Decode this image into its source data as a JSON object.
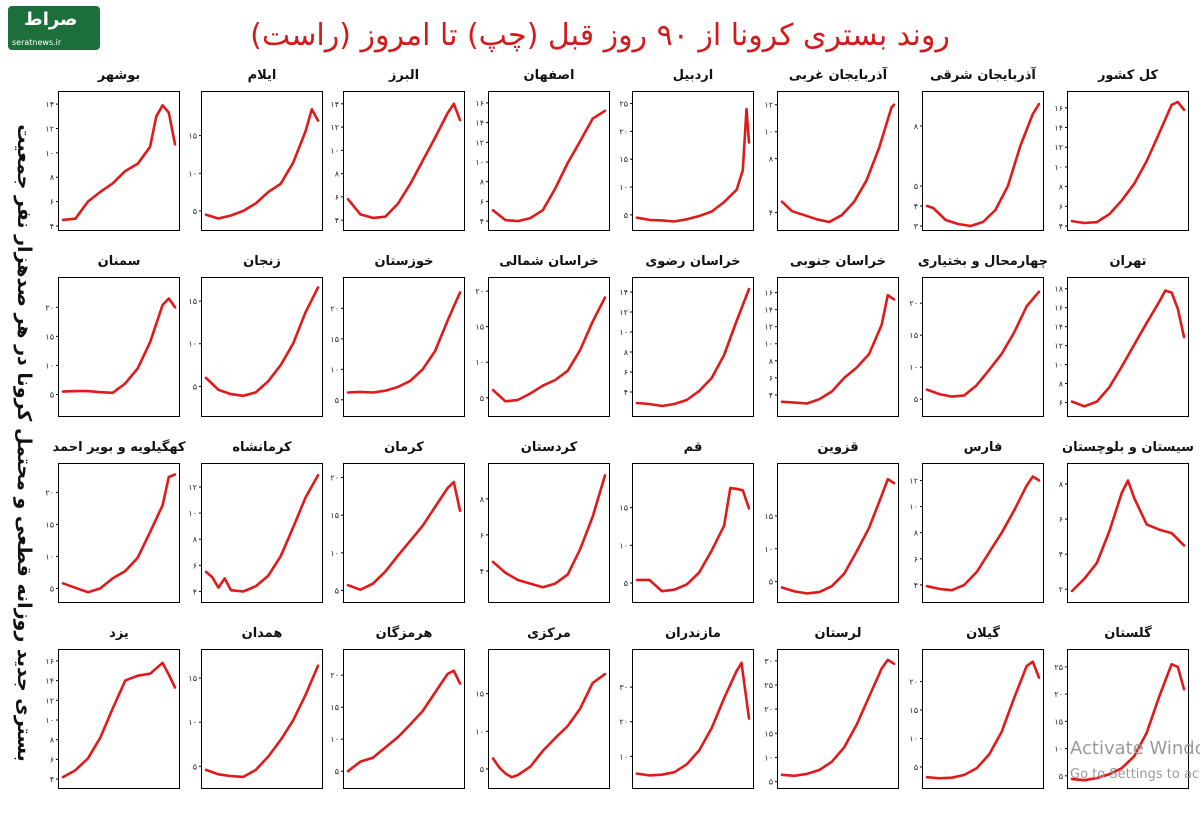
{
  "header": {
    "title": "روند بستری کرونا از ۹۰ روز قبل (چپ) تا امروز (راست)",
    "side_label": "بستری جدید روزانه قطعی و محتمل کرونا در هر صدهزار نفر جمعیت",
    "logo_mark": "صراط",
    "logo_url": "seratnews.ir",
    "watermark_line1": "Activate Windows",
    "watermark_line2": "Go to Settings to activate"
  },
  "colors": {
    "line": "#e01a1a",
    "title": "#d21a1a",
    "axis": "#000000"
  },
  "chart_data": [
    {
      "type": "line",
      "title": "کل کشور",
      "ylim": [
        4,
        17
      ],
      "yticks": [
        "۴",
        "۶",
        "۸",
        "۱۰",
        "۱۲",
        "۱۴",
        "۱۶"
      ],
      "x": [
        0,
        10,
        20,
        30,
        40,
        50,
        60,
        70,
        80,
        85,
        90
      ],
      "values": [
        4.5,
        4.3,
        4.4,
        5.2,
        6.6,
        8.3,
        10.6,
        13.4,
        16.3,
        16.6,
        15.8
      ]
    },
    {
      "type": "line",
      "title": "آذربایجان شرقی",
      "ylim": [
        3,
        9.4
      ],
      "yticks": [
        "۳",
        "۴",
        "۵",
        "۸"
      ],
      "x": [
        0,
        5,
        15,
        25,
        35,
        45,
        55,
        65,
        75,
        85,
        90
      ],
      "values": [
        4.0,
        3.9,
        3.3,
        3.1,
        3.0,
        3.2,
        3.8,
        5.0,
        7.0,
        8.6,
        9.1
      ]
    },
    {
      "type": "line",
      "title": "آذربایجان غربی",
      "ylim": [
        3,
        12.5
      ],
      "yticks": [
        "۴",
        "۸",
        "۱۰",
        "۱۲"
      ],
      "x": [
        0,
        8,
        18,
        28,
        38,
        48,
        58,
        68,
        78,
        88,
        90
      ],
      "values": [
        4.8,
        4.1,
        3.8,
        3.5,
        3.3,
        3.8,
        4.8,
        6.4,
        8.8,
        11.8,
        12.0
      ]
    },
    {
      "type": "line",
      "title": "اردبیل",
      "ylim": [
        3,
        26
      ],
      "yticks": [
        "۵",
        "۱۰",
        "۱۵",
        "۲۰",
        "۲۵"
      ],
      "x": [
        0,
        10,
        20,
        30,
        40,
        50,
        60,
        70,
        80,
        85,
        88,
        90
      ],
      "values": [
        4.5,
        4.1,
        4.0,
        3.8,
        4.2,
        4.8,
        5.6,
        7.3,
        9.5,
        13.0,
        24.0,
        18.0
      ]
    },
    {
      "type": "line",
      "title": "اصفهان",
      "ylim": [
        3.5,
        16.5
      ],
      "yticks": [
        "۴",
        "۶",
        "۸",
        "۱۰",
        "۱۲",
        "۱۴",
        "۱۶"
      ],
      "x": [
        0,
        10,
        20,
        30,
        40,
        50,
        60,
        70,
        80,
        90
      ],
      "values": [
        5.1,
        4.1,
        4.0,
        4.3,
        5.1,
        7.3,
        9.9,
        12.1,
        14.4,
        15.2
      ]
    },
    {
      "type": "line",
      "title": "البرز",
      "ylim": [
        3.5,
        14.5
      ],
      "yticks": [
        "۴",
        "۶",
        "۸",
        "۱۰",
        "۱۲",
        "۱۴"
      ],
      "x": [
        0,
        10,
        20,
        30,
        40,
        50,
        60,
        70,
        80,
        85,
        90
      ],
      "values": [
        5.8,
        4.5,
        4.2,
        4.3,
        5.4,
        7.1,
        9.1,
        11.1,
        13.2,
        14.0,
        12.6
      ]
    },
    {
      "type": "line",
      "title": "ایلام",
      "ylim": [
        3,
        20
      ],
      "yticks": [
        "۵",
        "۱۰",
        "۱۵"
      ],
      "x": [
        0,
        10,
        20,
        30,
        40,
        50,
        60,
        70,
        80,
        85,
        90
      ],
      "values": [
        4.5,
        4.0,
        4.4,
        5.0,
        6.0,
        7.5,
        8.6,
        11.4,
        15.6,
        18.5,
        17.0
      ]
    },
    {
      "type": "line",
      "title": "بوشهر",
      "ylim": [
        4,
        14.5
      ],
      "yticks": [
        "۴",
        "۶",
        "۸",
        "۱۰",
        "۱۲",
        "۱۴"
      ],
      "x": [
        0,
        10,
        20,
        30,
        40,
        50,
        60,
        70,
        75,
        80,
        85,
        90
      ],
      "values": [
        4.5,
        4.6,
        6.0,
        6.8,
        7.5,
        8.5,
        9.1,
        10.5,
        13.0,
        13.9,
        13.3,
        10.7
      ]
    },
    {
      "type": "line",
      "title": "تهران",
      "ylim": [
        5,
        18.5
      ],
      "yticks": [
        "۶",
        "۸",
        "۱۰",
        "۱۲",
        "۱۴",
        "۱۶",
        "۱۸"
      ],
      "x": [
        0,
        10,
        20,
        30,
        40,
        50,
        60,
        70,
        75,
        80,
        85,
        90
      ],
      "values": [
        6.1,
        5.6,
        6.1,
        7.6,
        9.8,
        12.1,
        14.4,
        16.6,
        17.8,
        17.6,
        15.9,
        12.9
      ]
    },
    {
      "type": "line",
      "title": "چهارمحال و بختیاری",
      "ylim": [
        3,
        23
      ],
      "yticks": [
        "۵",
        "۱۰",
        "۱۵",
        "۲۰"
      ],
      "x": [
        0,
        10,
        20,
        30,
        40,
        50,
        60,
        70,
        80,
        90
      ],
      "values": [
        6.5,
        5.8,
        5.4,
        5.6,
        7.2,
        9.6,
        12.1,
        15.4,
        19.5,
        21.8
      ]
    },
    {
      "type": "line",
      "title": "خراسان جنوبی",
      "ylim": [
        2,
        17
      ],
      "yticks": [
        "۴",
        "۶",
        "۸",
        "۱۰",
        "۱۲",
        "۱۴",
        "۱۶"
      ],
      "x": [
        0,
        10,
        20,
        30,
        40,
        50,
        60,
        70,
        80,
        85,
        90
      ],
      "values": [
        3.2,
        3.1,
        3.0,
        3.5,
        4.4,
        6.0,
        7.2,
        8.8,
        12.2,
        15.7,
        15.2
      ]
    },
    {
      "type": "line",
      "title": "خراسان رضوی",
      "ylim": [
        2,
        14.8
      ],
      "yticks": [
        "۴",
        "۶",
        "۸",
        "۱۰",
        "۱۲",
        "۱۴"
      ],
      "x": [
        0,
        10,
        20,
        30,
        40,
        50,
        60,
        70,
        80,
        90
      ],
      "values": [
        2.9,
        2.8,
        2.6,
        2.8,
        3.2,
        4.1,
        5.4,
        7.7,
        11.1,
        14.3
      ]
    },
    {
      "type": "line",
      "title": "خراسان شمالی",
      "ylim": [
        3,
        21
      ],
      "yticks": [
        "۵",
        "۱۰",
        "۱۵",
        "۲۰"
      ],
      "x": [
        0,
        10,
        20,
        30,
        40,
        50,
        60,
        70,
        80,
        90
      ],
      "values": [
        6.1,
        4.5,
        4.7,
        5.6,
        6.7,
        7.5,
        8.8,
        11.7,
        15.7,
        19.1
      ]
    },
    {
      "type": "line",
      "title": "خوزستان",
      "ylim": [
        3,
        24
      ],
      "yticks": [
        "۵",
        "۱۰",
        "۱۵",
        "۲۰"
      ],
      "x": [
        0,
        10,
        20,
        30,
        40,
        50,
        60,
        70,
        80,
        90
      ],
      "values": [
        6.2,
        6.3,
        6.2,
        6.5,
        7.1,
        8.1,
        10.0,
        13.0,
        18.0,
        22.6
      ]
    },
    {
      "type": "line",
      "title": "زنجان",
      "ylim": [
        2,
        17
      ],
      "yticks": [
        "۵",
        "۱۰",
        "۱۵"
      ],
      "x": [
        0,
        10,
        20,
        30,
        40,
        50,
        60,
        70,
        80,
        90
      ],
      "values": [
        6.0,
        4.6,
        4.1,
        3.9,
        4.3,
        5.6,
        7.5,
        10.0,
        13.7,
        16.6
      ]
    },
    {
      "type": "line",
      "title": "سمنان",
      "ylim": [
        2,
        24
      ],
      "yticks": [
        "۵",
        "۱۰",
        "۱۵",
        "۲۰"
      ],
      "x": [
        0,
        10,
        20,
        30,
        40,
        50,
        60,
        70,
        80,
        85,
        90
      ],
      "values": [
        5.5,
        5.6,
        5.6,
        5.4,
        5.3,
        6.9,
        9.5,
        14.0,
        20.4,
        21.5,
        20.0
      ]
    },
    {
      "type": "line",
      "title": "سیستان و بلوچستان",
      "ylim": [
        1.5,
        8.8
      ],
      "yticks": [
        "۲",
        "۴",
        "۶",
        "۸"
      ],
      "x": [
        0,
        10,
        20,
        30,
        40,
        45,
        50,
        60,
        70,
        80,
        90
      ],
      "values": [
        1.9,
        2.6,
        3.5,
        5.3,
        7.5,
        8.2,
        7.2,
        5.7,
        5.4,
        5.2,
        4.5
      ]
    },
    {
      "type": "line",
      "title": "فارس",
      "ylim": [
        3,
        12.8
      ],
      "yticks": [
        "۴",
        "۶",
        "۸",
        "۱۰",
        "۱۲"
      ],
      "x": [
        0,
        10,
        20,
        30,
        40,
        50,
        60,
        70,
        80,
        85,
        90
      ],
      "values": [
        3.9,
        3.7,
        3.6,
        4.0,
        5.0,
        6.5,
        8.0,
        9.7,
        11.6,
        12.3,
        12.0
      ]
    },
    {
      "type": "line",
      "title": "قزوین",
      "ylim": [
        2.5,
        22
      ],
      "yticks": [
        "۵",
        "۱۰",
        "۱۵"
      ],
      "x": [
        0,
        10,
        20,
        30,
        40,
        50,
        60,
        70,
        80,
        85,
        90
      ],
      "values": [
        4.1,
        3.5,
        3.2,
        3.4,
        4.3,
        6.2,
        9.6,
        13.2,
        18.1,
        20.6,
        20.0
      ]
    },
    {
      "type": "line",
      "title": "قم",
      "ylim": [
        3,
        20
      ],
      "yticks": [
        "۵",
        "۱۰",
        "۱۵"
      ],
      "x": [
        0,
        10,
        20,
        30,
        40,
        50,
        60,
        70,
        75,
        80,
        85,
        90
      ],
      "values": [
        5.4,
        5.4,
        3.9,
        4.1,
        4.8,
        6.4,
        9.3,
        12.6,
        17.6,
        17.5,
        17.3,
        14.9
      ]
    },
    {
      "type": "line",
      "title": "کردستان",
      "ylim": [
        2.5,
        9.6
      ],
      "yticks": [
        "۴",
        "۶",
        "۸"
      ],
      "x": [
        0,
        10,
        20,
        30,
        40,
        50,
        60,
        70,
        80,
        90
      ],
      "values": [
        4.5,
        3.9,
        3.5,
        3.3,
        3.1,
        3.3,
        3.8,
        5.2,
        7.0,
        9.3
      ]
    },
    {
      "type": "line",
      "title": "کرمان",
      "ylim": [
        4,
        21
      ],
      "yticks": [
        "۵",
        "۱۰",
        "۱۵",
        "۲۰"
      ],
      "x": [
        0,
        10,
        20,
        30,
        40,
        50,
        60,
        70,
        80,
        85,
        90
      ],
      "values": [
        5.7,
        5.1,
        5.9,
        7.5,
        9.6,
        11.6,
        13.6,
        16.1,
        18.6,
        19.4,
        15.6
      ]
    },
    {
      "type": "line",
      "title": "کرمانشاه",
      "ylim": [
        3.5,
        13.3
      ],
      "yticks": [
        "۴",
        "۶",
        "۸",
        "۱۰",
        "۱۲"
      ],
      "x": [
        0,
        5,
        10,
        15,
        20,
        30,
        40,
        50,
        60,
        70,
        80,
        90
      ],
      "values": [
        5.5,
        5.1,
        4.3,
        5.0,
        4.1,
        4.0,
        4.4,
        5.2,
        6.7,
        8.9,
        11.2,
        12.9
      ]
    },
    {
      "type": "line",
      "title": "کهگیلویه و بویر احمد",
      "ylim": [
        3.5,
        23.5
      ],
      "yticks": [
        "۵",
        "۱۰",
        "۱۵",
        "۲۰"
      ],
      "x": [
        0,
        10,
        20,
        30,
        40,
        50,
        60,
        70,
        80,
        85,
        90
      ],
      "values": [
        5.8,
        5.1,
        4.4,
        5.0,
        6.6,
        7.7,
        9.8,
        13.8,
        18.0,
        22.4,
        22.8
      ]
    },
    {
      "type": "line",
      "title": "گلستان",
      "ylim": [
        3.5,
        27
      ],
      "yticks": [
        "۵",
        "۱۰",
        "۱۵",
        "۲۰",
        "۲۵"
      ],
      "x": [
        0,
        10,
        20,
        30,
        40,
        50,
        60,
        70,
        80,
        85,
        90
      ],
      "values": [
        4.4,
        4.2,
        4.6,
        5.3,
        6.4,
        8.6,
        12.9,
        19.5,
        25.5,
        25.0,
        20.9
      ]
    },
    {
      "type": "line",
      "title": "گیلان",
      "ylim": [
        2,
        24.5
      ],
      "yticks": [
        "۵",
        "۱۰",
        "۱۵",
        "۲۰"
      ],
      "x": [
        0,
        10,
        20,
        30,
        40,
        50,
        60,
        70,
        80,
        85,
        90
      ],
      "values": [
        3.2,
        3.0,
        3.1,
        3.6,
        4.8,
        7.2,
        11.2,
        17.1,
        22.7,
        23.5,
        20.7
      ]
    },
    {
      "type": "line",
      "title": "لرستان",
      "ylim": [
        4.5,
        31
      ],
      "yticks": [
        "۵",
        "۱۰",
        "۱۵",
        "۲۰",
        "۲۵",
        "۳۰"
      ],
      "x": [
        0,
        10,
        20,
        30,
        40,
        50,
        60,
        70,
        80,
        85,
        90
      ],
      "values": [
        6.4,
        6.2,
        6.6,
        7.4,
        9.1,
        12.1,
        16.8,
        22.6,
        28.4,
        30.2,
        29.4
      ]
    },
    {
      "type": "line",
      "title": "مازندران",
      "ylim": [
        2,
        39
      ],
      "yticks": [
        "۱۰",
        "۲۰",
        "۳۰"
      ],
      "x": [
        0,
        10,
        20,
        30,
        40,
        50,
        60,
        70,
        80,
        84,
        90
      ],
      "values": [
        5.0,
        4.5,
        4.7,
        5.4,
        7.7,
        11.7,
        18.2,
        26.8,
        34.7,
        37.0,
        20.9
      ]
    },
    {
      "type": "line",
      "title": "مرکزی",
      "ylim": [
        3,
        20
      ],
      "yticks": [
        "۵",
        "۱۰",
        "۱۵"
      ],
      "x": [
        0,
        5,
        10,
        15,
        20,
        30,
        40,
        50,
        60,
        70,
        80,
        90
      ],
      "values": [
        6.4,
        5.2,
        4.4,
        3.9,
        4.2,
        5.3,
        7.4,
        9.1,
        10.7,
        13.0,
        16.4,
        17.6
      ]
    },
    {
      "type": "line",
      "title": "هرمزگان",
      "ylim": [
        3,
        23
      ],
      "yticks": [
        "۵",
        "۱۰",
        "۱۵",
        "۲۰"
      ],
      "x": [
        0,
        10,
        20,
        30,
        40,
        50,
        60,
        70,
        80,
        85,
        90
      ],
      "values": [
        5.0,
        6.5,
        7.1,
        8.7,
        10.3,
        12.3,
        14.4,
        17.3,
        20.2,
        20.7,
        18.7
      ]
    },
    {
      "type": "line",
      "title": "همدان",
      "ylim": [
        3,
        17.5
      ],
      "yticks": [
        "۵",
        "۱۰",
        "۱۵"
      ],
      "x": [
        0,
        10,
        20,
        30,
        40,
        50,
        60,
        70,
        80,
        90
      ],
      "values": [
        4.6,
        4.1,
        3.9,
        3.8,
        4.6,
        6.1,
        8.0,
        10.2,
        13.1,
        16.4
      ]
    },
    {
      "type": "line",
      "title": "یزد",
      "ylim": [
        3.5,
        16.5
      ],
      "yticks": [
        "۴",
        "۶",
        "۸",
        "۱۰",
        "۱۲",
        "۱۴",
        "۱۶"
      ],
      "x": [
        0,
        10,
        20,
        30,
        40,
        50,
        60,
        70,
        80,
        85,
        90
      ],
      "values": [
        4.2,
        4.9,
        6.1,
        8.2,
        11.2,
        14.0,
        14.5,
        14.7,
        15.8,
        14.6,
        13.3
      ]
    }
  ]
}
